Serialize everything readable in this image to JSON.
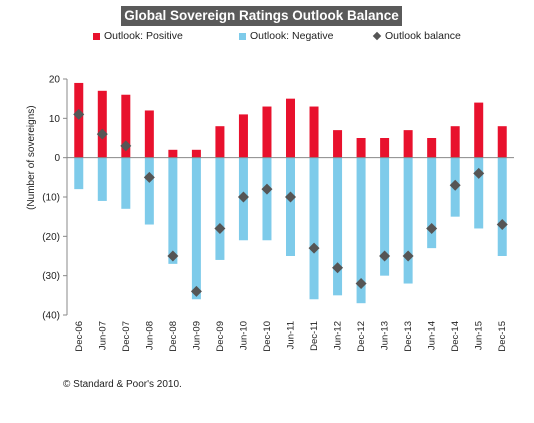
{
  "chart_data": {
    "type": "bar",
    "title": "Global Sovereign Ratings Outlook Balance",
    "ylabel": "(Number of sovereigns)",
    "xlabel": "",
    "ylim": [
      -40,
      20
    ],
    "yticks": [
      20,
      10,
      0,
      -10,
      -20,
      -30,
      -40
    ],
    "ytick_labels": [
      "20",
      "10",
      "0",
      "(10)",
      "(20)",
      "(30)",
      "(40)"
    ],
    "grid": false,
    "legend_placement": "top",
    "categories": [
      "Dec-06",
      "Jun-07",
      "Dec-07",
      "Jun-08",
      "Dec-08",
      "Jun-09",
      "Dec-09",
      "Jun-10",
      "Dec-10",
      "Jun-11",
      "Dec-11",
      "Jun-12",
      "Dec-12",
      "Jun-13",
      "Dec-13",
      "Jun-14",
      "Dec-14",
      "Jun-15",
      "Dec-15"
    ],
    "series": [
      {
        "name": "Outlook: Positive",
        "type": "bar",
        "color": "#e8112d",
        "values": [
          19,
          17,
          16,
          12,
          2,
          2,
          8,
          11,
          13,
          15,
          13,
          7,
          5,
          5,
          7,
          5,
          8,
          14,
          8
        ]
      },
      {
        "name": "Outlook: Negative",
        "type": "bar",
        "color": "#7ecbea",
        "values": [
          -8,
          -11,
          -13,
          -17,
          -27,
          -36,
          -26,
          -21,
          -21,
          -25,
          -36,
          -35,
          -37,
          -30,
          -32,
          -23,
          -15,
          -18,
          -25
        ]
      },
      {
        "name": "Outlook balance",
        "type": "marker",
        "color": "#555555",
        "values": [
          11,
          6,
          3,
          -5,
          -25,
          -34,
          -18,
          -10,
          -8,
          -10,
          -23,
          -28,
          -32,
          -25,
          -25,
          -18,
          -7,
          -4,
          -17
        ]
      }
    ]
  },
  "footer": {
    "copyright": "© Standard & Poor's 2010."
  }
}
